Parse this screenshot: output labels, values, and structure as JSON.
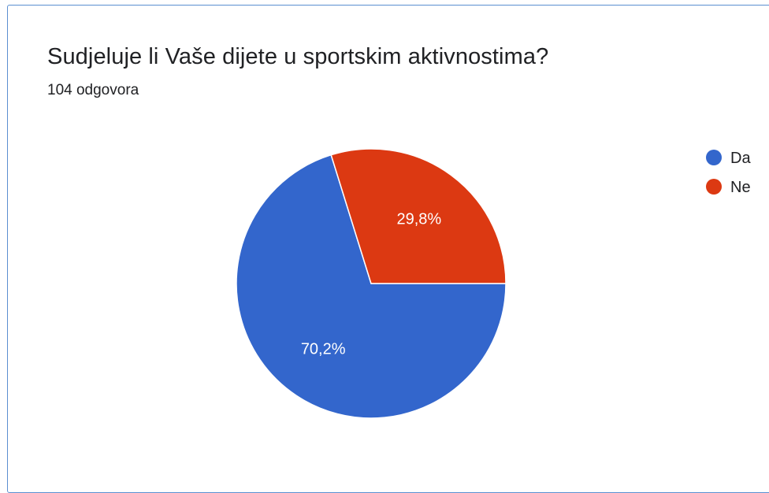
{
  "title": "Sudjeluje li Vaše dijete u sportskim aktivnostima?",
  "subtitle": "104 odgovora",
  "chart_data": {
    "type": "pie",
    "title": "Sudjeluje li Vaše dijete u sportskim aktivnostima?",
    "subtitle": "104 odgovora",
    "slices": [
      {
        "label": "Da",
        "value": 70.2,
        "display": "70,2%",
        "color": "#3366cc"
      },
      {
        "label": "Ne",
        "value": 29.8,
        "display": "29,8%",
        "color": "#dc3912"
      }
    ],
    "legend_position": "right"
  }
}
